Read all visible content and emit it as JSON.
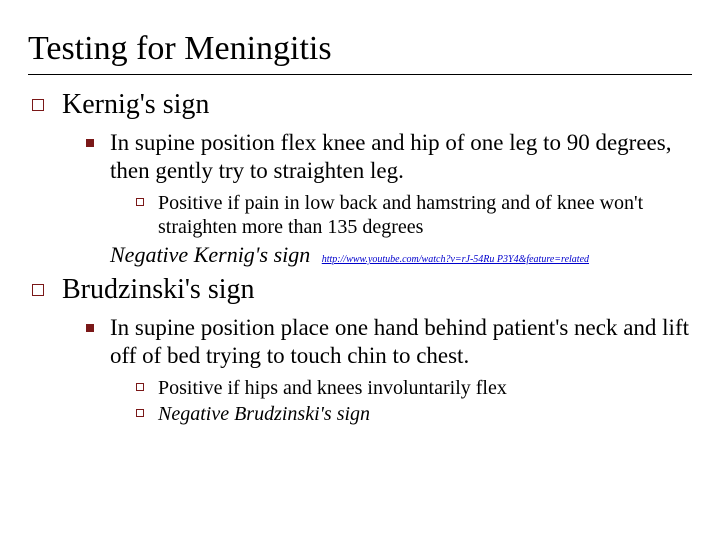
{
  "title": "Testing for Meningitis",
  "sections": [
    {
      "heading": "Kernig's sign",
      "items": [
        {
          "text": "In supine position flex knee and hip of one leg to 90 degrees, then gently try to straighten leg.",
          "subitems": [
            {
              "text": "Positive if pain in low back and hamstring and of knee won't straighten more than 135 degrees"
            }
          ],
          "negative": "Negative Kernig's sign",
          "link": "http://www.youtube.com/watch?v=rJ-54Ru P3Y4&feature=related"
        }
      ]
    },
    {
      "heading": "Brudzinski's sign",
      "items": [
        {
          "text": "In supine position place one hand behind patient's neck and lift off of bed trying to touch chin to chest.",
          "subitems": [
            {
              "text": "Positive if hips and knees involuntarily flex"
            },
            {
              "text_italic": "Negative Brudzinski's sign"
            }
          ]
        }
      ]
    }
  ]
}
